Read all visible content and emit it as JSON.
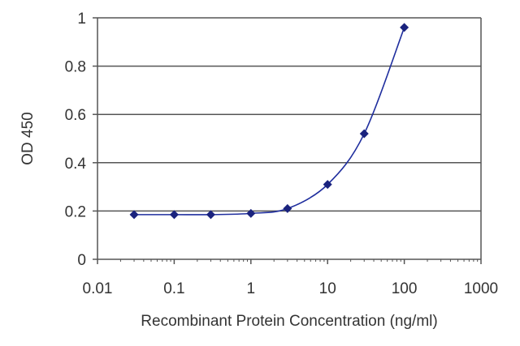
{
  "chart_data": {
    "type": "line",
    "title": "",
    "xlabel": "Recombinant Protein Concentration (ng/ml)",
    "ylabel": "OD 450",
    "x_scale": "log",
    "xlim": [
      0.01,
      1000
    ],
    "ylim": [
      0,
      1
    ],
    "x_ticks": [
      0.01,
      0.1,
      1,
      10,
      100,
      1000
    ],
    "x_tick_labels": [
      "0.01",
      "0.1",
      "1",
      "10",
      "100",
      "1000"
    ],
    "y_ticks": [
      0,
      0.2,
      0.4,
      0.6,
      0.8,
      1
    ],
    "y_tick_labels": [
      "0",
      "0.2",
      "0.4",
      "0.6",
      "0.8",
      "1"
    ],
    "grid": "horizontal",
    "legend": "none",
    "colors": {
      "series": "#1f2e9e",
      "marker": "#1a237e",
      "grid": "#555555",
      "axis": "#555555"
    },
    "series": [
      {
        "x": [
          0.03,
          0.1,
          0.3,
          1,
          3,
          10,
          30,
          100
        ],
        "y": [
          0.185,
          0.185,
          0.185,
          0.19,
          0.21,
          0.31,
          0.52,
          0.96
        ]
      }
    ]
  }
}
